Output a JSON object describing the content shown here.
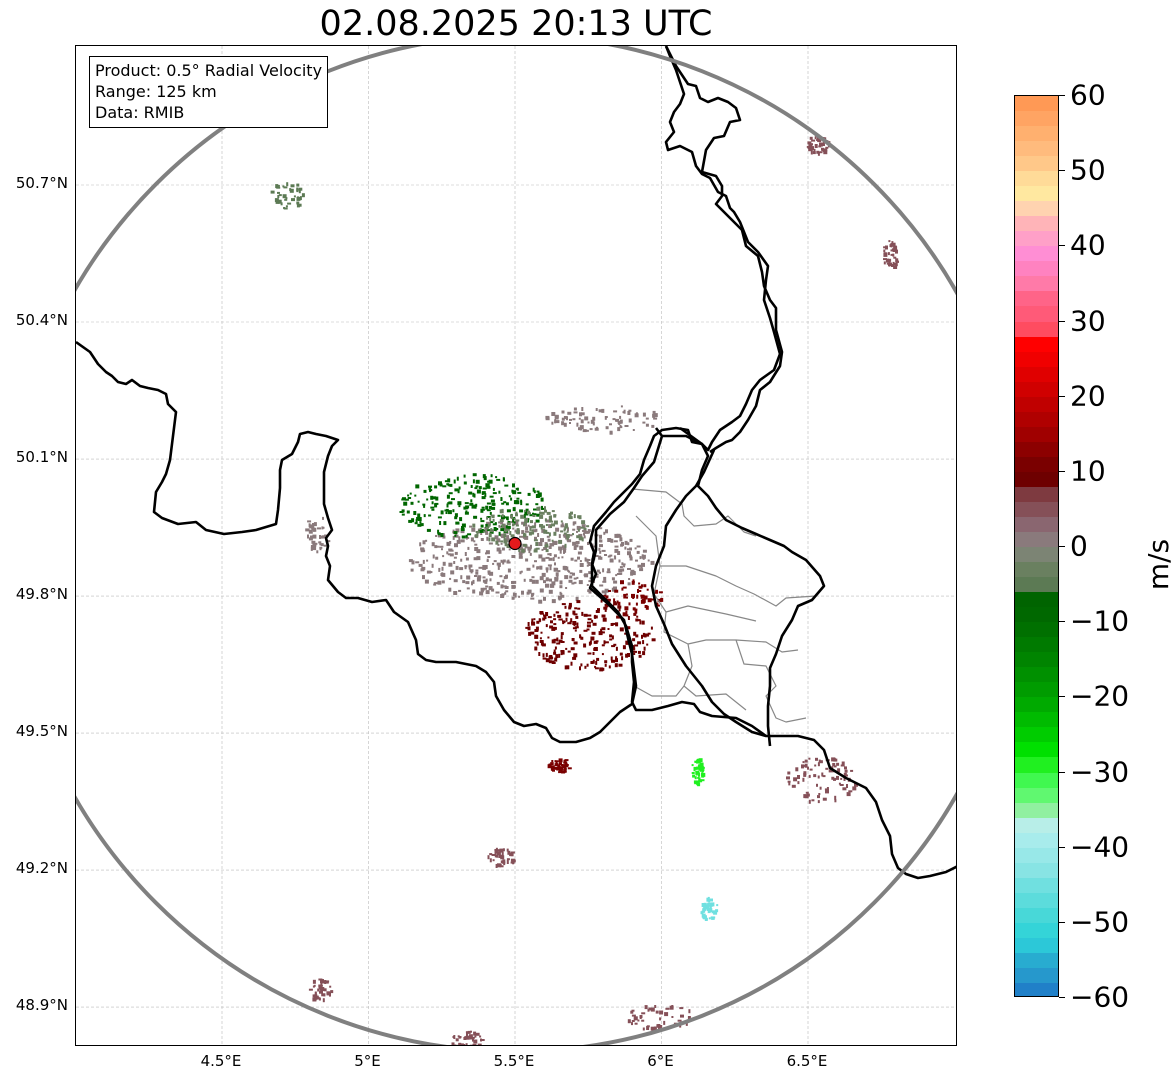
{
  "title": "02.08.2025 20:13 UTC",
  "info_box": {
    "product": "Product: 0.5° Radial Velocity",
    "range": "Range: 125 km",
    "data": "Data: RMIB"
  },
  "axes": {
    "lon_ticks": [
      {
        "value": 4.5,
        "label": "4.5°E"
      },
      {
        "value": 5.0,
        "label": "5°E"
      },
      {
        "value": 5.5,
        "label": "5.5°E"
      },
      {
        "value": 6.0,
        "label": "6°E"
      },
      {
        "value": 6.5,
        "label": "6.5°E"
      }
    ],
    "lat_ticks": [
      {
        "value": 50.7,
        "label": "50.7°N"
      },
      {
        "value": 50.4,
        "label": "50.4°N"
      },
      {
        "value": 50.1,
        "label": "50.1°N"
      },
      {
        "value": 49.8,
        "label": "49.8°N"
      },
      {
        "value": 49.5,
        "label": "49.5°N"
      },
      {
        "value": 49.2,
        "label": "49.2°N"
      },
      {
        "value": 48.9,
        "label": "48.9°N"
      }
    ],
    "lon_range": [
      4.0,
      7.0
    ],
    "lat_range": [
      48.8,
      51.0
    ],
    "grid": true
  },
  "radar": {
    "lon": 5.5,
    "lat": 49.915,
    "marker_color": "#e31a1c",
    "range_ring_color": "#808080"
  },
  "colorbar": {
    "unit": "m/s",
    "min": -60,
    "max": 60,
    "ticks": [
      {
        "value": 60,
        "label": "60"
      },
      {
        "value": 50,
        "label": "50"
      },
      {
        "value": 40,
        "label": "40"
      },
      {
        "value": 30,
        "label": "30"
      },
      {
        "value": 20,
        "label": "20"
      },
      {
        "value": 10,
        "label": "10"
      },
      {
        "value": 0,
        "label": "0"
      },
      {
        "value": -10,
        "label": "−10"
      },
      {
        "value": -20,
        "label": "−20"
      },
      {
        "value": -30,
        "label": "−30"
      },
      {
        "value": -40,
        "label": "−40"
      },
      {
        "value": -50,
        "label": "−50"
      },
      {
        "value": -60,
        "label": "−60"
      }
    ],
    "segments": [
      {
        "from": 58,
        "to": 60,
        "color": "#ff9955"
      },
      {
        "from": 56,
        "to": 58,
        "color": "#ffa463"
      },
      {
        "from": 54,
        "to": 56,
        "color": "#ffb06f"
      },
      {
        "from": 52,
        "to": 54,
        "color": "#ffbb7d"
      },
      {
        "from": 50,
        "to": 52,
        "color": "#ffc889"
      },
      {
        "from": 48,
        "to": 50,
        "color": "#ffdb98"
      },
      {
        "from": 46,
        "to": 48,
        "color": "#ffe8a0"
      },
      {
        "from": 44,
        "to": 46,
        "color": "#ffd3b0"
      },
      {
        "from": 42,
        "to": 44,
        "color": "#ffb4b8"
      },
      {
        "from": 40,
        "to": 42,
        "color": "#ffa0c8"
      },
      {
        "from": 38,
        "to": 40,
        "color": "#ff8ed4"
      },
      {
        "from": 36,
        "to": 38,
        "color": "#ff82c0"
      },
      {
        "from": 34,
        "to": 36,
        "color": "#ff7aa8"
      },
      {
        "from": 32,
        "to": 34,
        "color": "#ff6488"
      },
      {
        "from": 30,
        "to": 32,
        "color": "#ff5a78"
      },
      {
        "from": 28,
        "to": 30,
        "color": "#ff4c60"
      },
      {
        "from": 26,
        "to": 28,
        "color": "#ff0000"
      },
      {
        "from": 24,
        "to": 26,
        "color": "#f00000"
      },
      {
        "from": 22,
        "to": 24,
        "color": "#e00000"
      },
      {
        "from": 20,
        "to": 22,
        "color": "#d00000"
      },
      {
        "from": 18,
        "to": 20,
        "color": "#c00000"
      },
      {
        "from": 16,
        "to": 18,
        "color": "#b00000"
      },
      {
        "from": 14,
        "to": 16,
        "color": "#a00000"
      },
      {
        "from": 12,
        "to": 14,
        "color": "#8c0000"
      },
      {
        "from": 10,
        "to": 12,
        "color": "#7a0000"
      },
      {
        "from": 8,
        "to": 10,
        "color": "#6e0000"
      },
      {
        "from": 6,
        "to": 8,
        "color": "#7e3a40"
      },
      {
        "from": 4,
        "to": 6,
        "color": "#855058"
      },
      {
        "from": 2,
        "to": 4,
        "color": "#8a6670"
      },
      {
        "from": 0,
        "to": 2,
        "color": "#8a7a7c"
      },
      {
        "from": -2,
        "to": 0,
        "color": "#7c8474"
      },
      {
        "from": -4,
        "to": -2,
        "color": "#6a8060"
      },
      {
        "from": -6,
        "to": -4,
        "color": "#5c7a54"
      },
      {
        "from": -8,
        "to": -6,
        "color": "#006400"
      },
      {
        "from": -10,
        "to": -8,
        "color": "#006800"
      },
      {
        "from": -12,
        "to": -10,
        "color": "#007000"
      },
      {
        "from": -14,
        "to": -12,
        "color": "#007a00"
      },
      {
        "from": -16,
        "to": -14,
        "color": "#008400"
      },
      {
        "from": -18,
        "to": -16,
        "color": "#009000"
      },
      {
        "from": -20,
        "to": -18,
        "color": "#009c00"
      },
      {
        "from": -22,
        "to": -20,
        "color": "#00aa00"
      },
      {
        "from": -24,
        "to": -22,
        "color": "#00bb00"
      },
      {
        "from": -26,
        "to": -24,
        "color": "#00cc00"
      },
      {
        "from": -28,
        "to": -26,
        "color": "#00e000"
      },
      {
        "from": -30,
        "to": -28,
        "color": "#20f020"
      },
      {
        "from": -32,
        "to": -30,
        "color": "#40f850"
      },
      {
        "from": -34,
        "to": -32,
        "color": "#60f870"
      },
      {
        "from": -36,
        "to": -34,
        "color": "#90f0a0"
      },
      {
        "from": -38,
        "to": -36,
        "color": "#b8eee8"
      },
      {
        "from": -40,
        "to": -38,
        "color": "#a8ecec"
      },
      {
        "from": -42,
        "to": -40,
        "color": "#98e8e8"
      },
      {
        "from": -44,
        "to": -42,
        "color": "#88e4e4"
      },
      {
        "from": -46,
        "to": -44,
        "color": "#70e0e0"
      },
      {
        "from": -48,
        "to": -46,
        "color": "#5cdcdc"
      },
      {
        "from": -50,
        "to": -48,
        "color": "#48d8d8"
      },
      {
        "from": -52,
        "to": -50,
        "color": "#34d4d8"
      },
      {
        "from": -54,
        "to": -52,
        "color": "#2cc8d8"
      },
      {
        "from": -56,
        "to": -54,
        "color": "#28acd0"
      },
      {
        "from": -58,
        "to": -56,
        "color": "#2698cc"
      },
      {
        "from": -60,
        "to": -58,
        "color": "#2080c8"
      }
    ]
  },
  "echo_regions": [
    {
      "name": "central-zero",
      "lon": 5.55,
      "lat": 49.88,
      "rlon": 0.42,
      "rlat": 0.09,
      "color": "#8a7a7c"
    },
    {
      "name": "central-neg-green",
      "lon": 5.35,
      "lat": 50.0,
      "rlon": 0.25,
      "rlat": 0.07,
      "color": "#006600"
    },
    {
      "name": "central-grey-green",
      "lon": 5.55,
      "lat": 49.95,
      "rlon": 0.2,
      "rlat": 0.05,
      "color": "#6a8060"
    },
    {
      "name": "southeast-outbound",
      "lon": 5.75,
      "lat": 49.72,
      "rlon": 0.22,
      "rlat": 0.08,
      "color": "#6e0000"
    },
    {
      "name": "east-outbound",
      "lon": 5.9,
      "lat": 49.8,
      "rlon": 0.1,
      "rlat": 0.04,
      "color": "#7a0000"
    },
    {
      "name": "north-band",
      "lon": 5.8,
      "lat": 50.19,
      "rlon": 0.2,
      "rlat": 0.03,
      "color": "#8a7a7c"
    },
    {
      "name": "northwest-cell",
      "lon": 4.72,
      "lat": 50.68,
      "rlon": 0.06,
      "rlat": 0.03,
      "color": "#5c7a54"
    },
    {
      "name": "southeast-cell",
      "lon": 6.54,
      "lat": 49.4,
      "rlon": 0.12,
      "rlat": 0.05,
      "color": "#855058"
    },
    {
      "name": "south-cell-1",
      "lon": 5.65,
      "lat": 49.43,
      "rlon": 0.04,
      "rlat": 0.015,
      "color": "#7a0000"
    },
    {
      "name": "south-cell-2",
      "lon": 5.45,
      "lat": 49.23,
      "rlon": 0.05,
      "rlat": 0.02,
      "color": "#855058"
    },
    {
      "name": "south-cell-3",
      "lon": 5.33,
      "lat": 48.83,
      "rlon": 0.06,
      "rlat": 0.02,
      "color": "#855058"
    },
    {
      "name": "south-cell-4",
      "lon": 6.0,
      "lat": 48.88,
      "rlon": 0.12,
      "rlat": 0.03,
      "color": "#855058"
    },
    {
      "name": "southwest-cell",
      "lon": 4.83,
      "lat": 48.94,
      "rlon": 0.04,
      "rlat": 0.025,
      "color": "#855058"
    },
    {
      "name": "northeast-cell",
      "lon": 6.78,
      "lat": 50.55,
      "rlon": 0.03,
      "rlat": 0.03,
      "color": "#855058"
    },
    {
      "name": "northeast-cell-2",
      "lon": 6.53,
      "lat": 50.79,
      "rlon": 0.04,
      "rlat": 0.02,
      "color": "#855058"
    },
    {
      "name": "west-edge",
      "lon": 4.82,
      "lat": 49.94,
      "rlon": 0.04,
      "rlat": 0.04,
      "color": "#8a7a7c"
    },
    {
      "name": "east-green-cell",
      "lon": 6.12,
      "lat": 49.42,
      "rlon": 0.02,
      "rlat": 0.03,
      "color": "#20f020"
    },
    {
      "name": "south-cyan-cell",
      "lon": 6.16,
      "lat": 49.12,
      "rlon": 0.03,
      "rlat": 0.03,
      "color": "#70e0e0"
    }
  ]
}
